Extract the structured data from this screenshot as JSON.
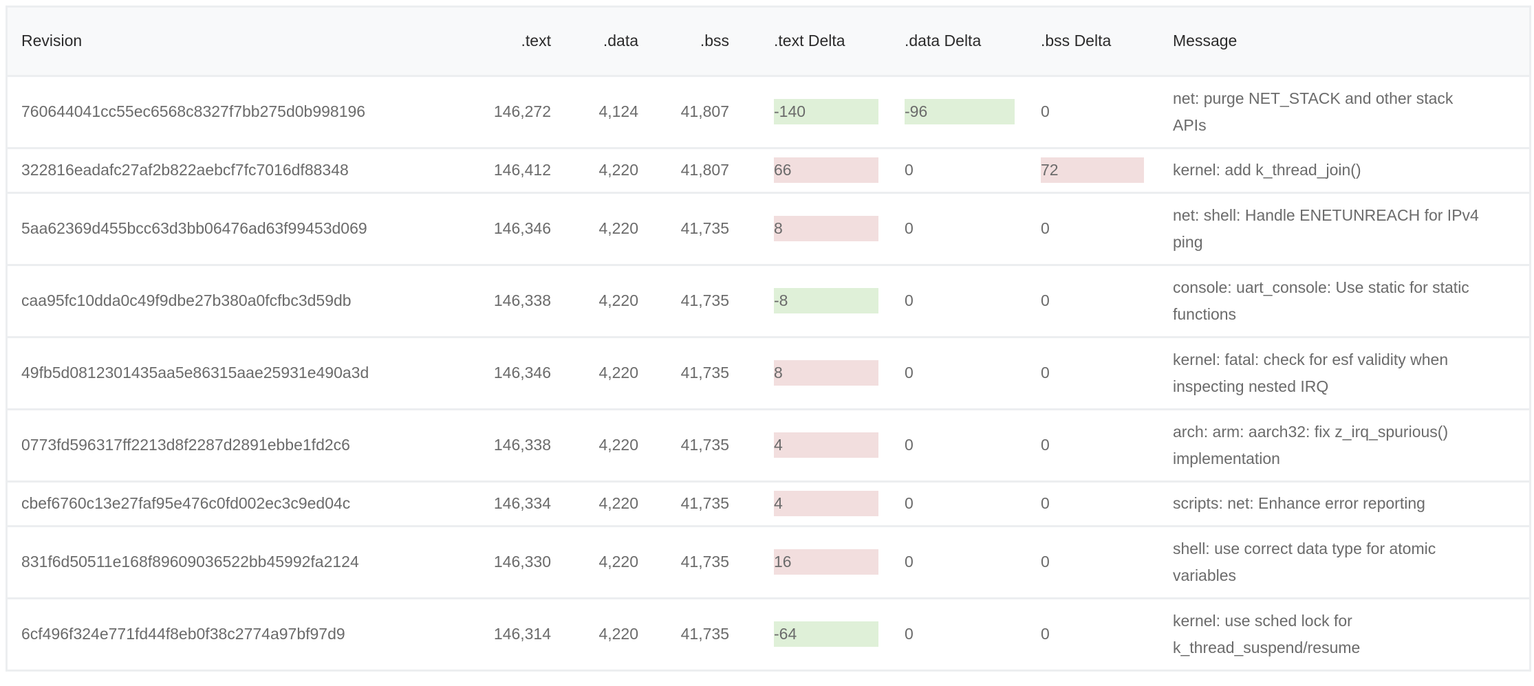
{
  "columns": [
    "Revision",
    ".text",
    ".data",
    ".bss",
    ".text Delta",
    ".data Delta",
    ".bss Delta",
    "Message"
  ],
  "colors": {
    "decrease": "#dff0d8",
    "increase": "#f2dede",
    "header_bg": "#f8f9fa"
  },
  "rows": [
    {
      "revision": "760644041cc55ec6568c8327f7bb275d0b998196",
      "text": "146,272",
      "data": "4,124",
      "bss": "41,807",
      "text_delta": "-140",
      "data_delta": "-96",
      "bss_delta": "0",
      "message": "net: purge NET_STACK and other stack APIs"
    },
    {
      "revision": "322816eadafc27af2b822aebcf7fc7016df88348",
      "text": "146,412",
      "data": "4,220",
      "bss": "41,807",
      "text_delta": "66",
      "data_delta": "0",
      "bss_delta": "72",
      "message": "kernel: add k_thread_join()"
    },
    {
      "revision": "5aa62369d455bcc63d3bb06476ad63f99453d069",
      "text": "146,346",
      "data": "4,220",
      "bss": "41,735",
      "text_delta": "8",
      "data_delta": "0",
      "bss_delta": "0",
      "message": "net: shell: Handle ENETUNREACH for IPv4 ping"
    },
    {
      "revision": "caa95fc10dda0c49f9dbe27b380a0fcfbc3d59db",
      "text": "146,338",
      "data": "4,220",
      "bss": "41,735",
      "text_delta": "-8",
      "data_delta": "0",
      "bss_delta": "0",
      "message": "console: uart_console: Use static for static functions"
    },
    {
      "revision": "49fb5d0812301435aa5e86315aae25931e490a3d",
      "text": "146,346",
      "data": "4,220",
      "bss": "41,735",
      "text_delta": "8",
      "data_delta": "0",
      "bss_delta": "0",
      "message": "kernel: fatal: check for esf validity when inspecting nested IRQ"
    },
    {
      "revision": "0773fd596317ff2213d8f2287d2891ebbe1fd2c6",
      "text": "146,338",
      "data": "4,220",
      "bss": "41,735",
      "text_delta": "4",
      "data_delta": "0",
      "bss_delta": "0",
      "message": "arch: arm: aarch32: fix z_irq_spurious() implementation"
    },
    {
      "revision": "cbef6760c13e27faf95e476c0fd002ec3c9ed04c",
      "text": "146,334",
      "data": "4,220",
      "bss": "41,735",
      "text_delta": "4",
      "data_delta": "0",
      "bss_delta": "0",
      "message": "scripts: net: Enhance error reporting"
    },
    {
      "revision": "831f6d50511e168f89609036522bb45992fa2124",
      "text": "146,330",
      "data": "4,220",
      "bss": "41,735",
      "text_delta": "16",
      "data_delta": "0",
      "bss_delta": "0",
      "message": "shell: use correct data type for atomic variables"
    },
    {
      "revision": "6cf496f324e771fd44f8eb0f38c2774a97bf97d9",
      "text": "146,314",
      "data": "4,220",
      "bss": "41,735",
      "text_delta": "-64",
      "data_delta": "0",
      "bss_delta": "0",
      "message": "kernel: use sched lock for k_thread_suspend/resume"
    }
  ]
}
